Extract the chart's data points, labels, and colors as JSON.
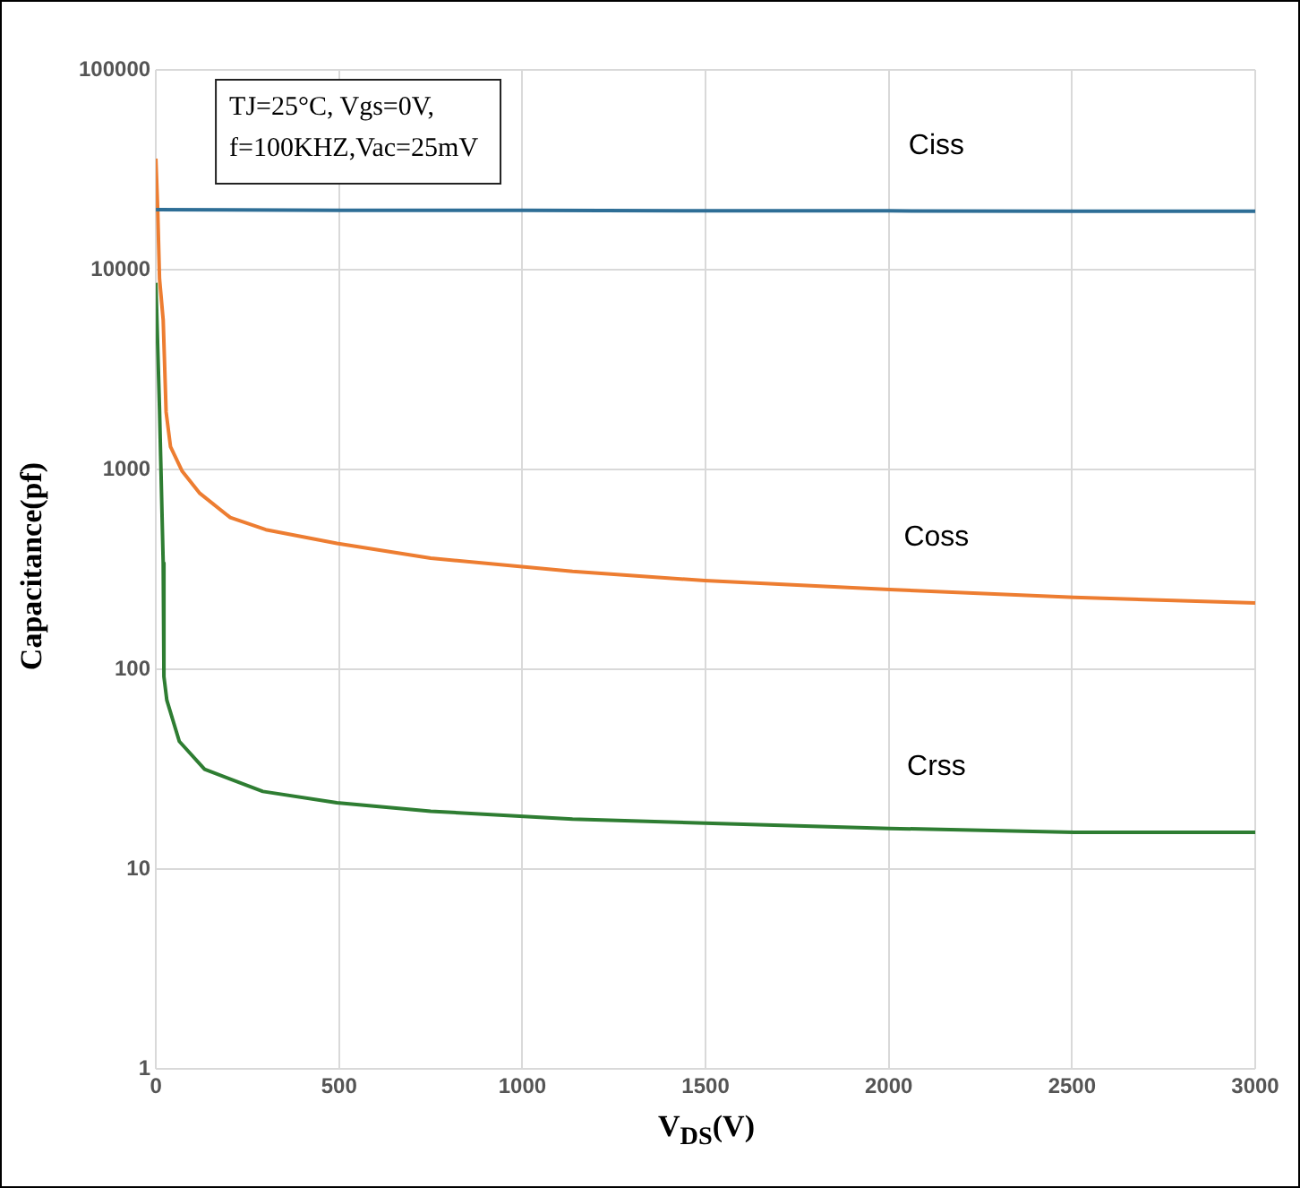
{
  "chart_data": {
    "type": "line",
    "xlabel": "V$_{DS}$(V)",
    "ylabel": "Capacitance(pf)",
    "annotations": [
      "TJ=25°C, Vgs=0V,",
      "f=100KHZ,Vac=25mV"
    ],
    "series": [
      {
        "name": "Ciss",
        "color": "#2e6e96",
        "x": [
          0,
          500,
          1000,
          1500,
          2000,
          2500,
          3000
        ],
        "values": [
          20000,
          19800,
          19800,
          19700,
          19700,
          19600,
          19600
        ]
      },
      {
        "name": "Coss",
        "color": "#ed7d31",
        "x": [
          0,
          5,
          10,
          20,
          28,
          40,
          72,
          120,
          203,
          300,
          494,
          750,
          1137,
          1498,
          2002,
          2506,
          3000
        ],
        "values": [
          36000,
          20000,
          9000,
          5600,
          1940,
          1300,
          980,
          760,
          575,
          500,
          427,
          360,
          309,
          278,
          251,
          229,
          215
        ]
      },
      {
        "name": "Crss",
        "color": "#2e7d32",
        "x": [
          0,
          2,
          10,
          20,
          22,
          30,
          64,
          133,
          292,
          494,
          750,
          1137,
          1498,
          2002,
          2506,
          3000
        ],
        "values": [
          8600,
          8600,
          2000,
          340,
          92,
          70,
          43.6,
          31.6,
          24.5,
          21.5,
          19.5,
          17.8,
          17,
          16,
          15.3,
          15.3
        ]
      }
    ],
    "xlim": [
      0,
      3000
    ],
    "xticks": [
      0,
      500,
      1000,
      1500,
      2000,
      2500,
      3000
    ],
    "ylim": [
      1,
      100000
    ],
    "yticks": [
      1,
      10,
      100,
      1000,
      10000,
      100000
    ],
    "log": "y",
    "grid": true,
    "legend": false,
    "marker": "none",
    "line_style": "solid"
  }
}
